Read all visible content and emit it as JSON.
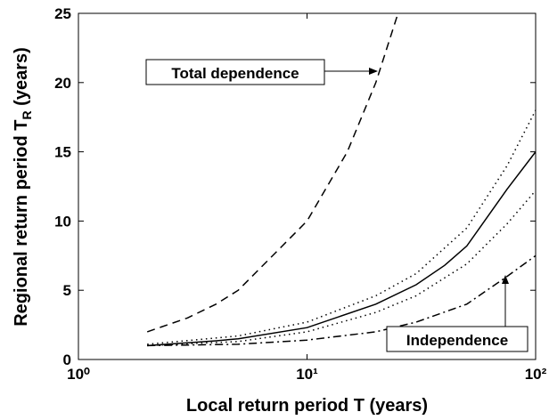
{
  "chart_data": {
    "type": "line",
    "xlabel": "Local return period T (years)",
    "ylabel": "Regional return period T_R (years)",
    "xscale": "log",
    "xlim": [
      1,
      100
    ],
    "xticks": [
      {
        "value": 1,
        "label": "10⁰"
      },
      {
        "value": 10,
        "label": "10¹"
      },
      {
        "value": 100,
        "label": "10²"
      }
    ],
    "ylim": [
      0,
      25
    ],
    "yticks": [
      0,
      5,
      10,
      15,
      20,
      25
    ],
    "series": [
      {
        "color": "#000000",
        "style": "dashed",
        "x": [
          2,
          3,
          4,
          5,
          10,
          15,
          20,
          25
        ],
        "values": [
          2,
          3,
          4,
          5,
          10,
          15,
          20,
          25
        ]
      },
      {
        "color": "#000000",
        "style": "dotted",
        "x": [
          2,
          5,
          10,
          20,
          30,
          50,
          75,
          100
        ],
        "values": [
          1.1,
          1.7,
          2.7,
          4.6,
          6.2,
          9.5,
          14,
          18
        ]
      },
      {
        "color": "#000000",
        "style": "solid",
        "x": [
          2,
          3,
          4,
          5,
          10,
          20,
          30,
          40,
          50,
          75,
          100
        ],
        "values": [
          1,
          1.2,
          1.35,
          1.5,
          2.3,
          4,
          5.4,
          6.8,
          8.2,
          12.3,
          15
        ]
      },
      {
        "color": "#000000",
        "style": "dotted",
        "x": [
          2,
          5,
          10,
          20,
          30,
          50,
          75,
          100
        ],
        "values": [
          1,
          1.3,
          2,
          3.4,
          4.6,
          6.9,
          9.8,
          12.2
        ]
      },
      {
        "color": "#000000",
        "style": "dashdot",
        "x": [
          2,
          5,
          10,
          20,
          30,
          50,
          75,
          100
        ],
        "values": [
          1,
          1.1,
          1.4,
          2,
          2.7,
          4,
          6,
          7.5
        ]
      }
    ],
    "annotations": [
      {
        "text": "Total dependence"
      },
      {
        "text": "Independence"
      }
    ]
  }
}
